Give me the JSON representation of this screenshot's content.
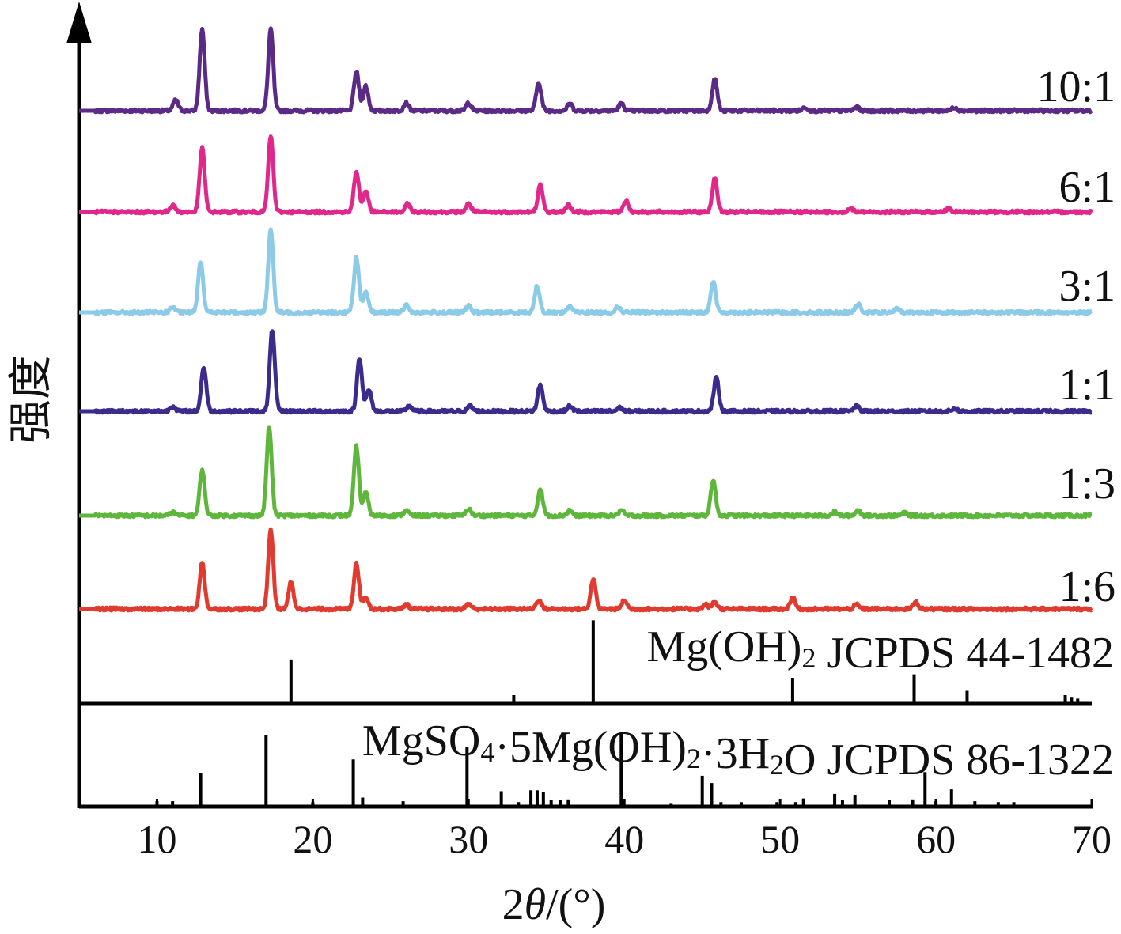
{
  "chart_data": {
    "type": "line",
    "title": "",
    "xlabel": "2θ/(°)",
    "ylabel": "强度",
    "xlim": [
      5,
      70
    ],
    "xticks": [
      10,
      20,
      30,
      40,
      50,
      60,
      70
    ],
    "xtick_labels": [
      "10",
      "20",
      "30",
      "40",
      "50",
      "60",
      "70"
    ],
    "y_ticks_shown": false,
    "grid": false,
    "legend": "series labels at right end of each trace",
    "series": [
      {
        "name": "10:1",
        "color": "#5b2a86",
        "peaks": [
          [
            11.2,
            0.12
          ],
          [
            12.9,
            0.92
          ],
          [
            17.3,
            0.92
          ],
          [
            22.8,
            0.44
          ],
          [
            23.4,
            0.28
          ],
          [
            26.0,
            0.09
          ],
          [
            30.0,
            0.09
          ],
          [
            34.5,
            0.32
          ],
          [
            36.5,
            0.08
          ],
          [
            39.8,
            0.08
          ],
          [
            45.8,
            0.36
          ],
          [
            51.6,
            0.04
          ],
          [
            54.9,
            0.04
          ],
          [
            61.2,
            0.04
          ]
        ]
      },
      {
        "name": "6:1",
        "color": "#e0288a",
        "peaks": [
          [
            11.0,
            0.08
          ],
          [
            12.9,
            0.72
          ],
          [
            17.3,
            0.86
          ],
          [
            22.8,
            0.46
          ],
          [
            23.4,
            0.24
          ],
          [
            26.1,
            0.09
          ],
          [
            30.0,
            0.09
          ],
          [
            34.6,
            0.3
          ],
          [
            36.4,
            0.08
          ],
          [
            40.1,
            0.13
          ],
          [
            45.8,
            0.38
          ],
          [
            54.5,
            0.04
          ],
          [
            60.8,
            0.04
          ]
        ]
      },
      {
        "name": "3:1",
        "color": "#8ccbe8",
        "peaks": [
          [
            11.0,
            0.06
          ],
          [
            12.8,
            0.58
          ],
          [
            17.3,
            0.94
          ],
          [
            22.8,
            0.62
          ],
          [
            23.4,
            0.22
          ],
          [
            26.0,
            0.08
          ],
          [
            30.0,
            0.07
          ],
          [
            34.4,
            0.3
          ],
          [
            36.5,
            0.07
          ],
          [
            39.6,
            0.06
          ],
          [
            45.7,
            0.35
          ],
          [
            55.0,
            0.09
          ],
          [
            57.5,
            0.04
          ]
        ]
      },
      {
        "name": "1:1",
        "color": "#3c2a8c",
        "peaks": [
          [
            11.0,
            0.06
          ],
          [
            13.0,
            0.5
          ],
          [
            17.4,
            0.92
          ],
          [
            23.0,
            0.6
          ],
          [
            23.6,
            0.24
          ],
          [
            26.2,
            0.06
          ],
          [
            30.1,
            0.06
          ],
          [
            34.6,
            0.3
          ],
          [
            36.5,
            0.06
          ],
          [
            39.7,
            0.04
          ],
          [
            45.9,
            0.38
          ],
          [
            54.9,
            0.06
          ],
          [
            61.2,
            0.03
          ]
        ]
      },
      {
        "name": "1:3",
        "color": "#5eb73c",
        "peaks": [
          [
            11.0,
            0.04
          ],
          [
            12.9,
            0.52
          ],
          [
            17.2,
            1.0
          ],
          [
            22.8,
            0.78
          ],
          [
            23.4,
            0.26
          ],
          [
            26.0,
            0.06
          ],
          [
            30.0,
            0.08
          ],
          [
            34.6,
            0.3
          ],
          [
            36.5,
            0.06
          ],
          [
            39.8,
            0.06
          ],
          [
            45.7,
            0.4
          ],
          [
            53.5,
            0.04
          ],
          [
            55.0,
            0.06
          ],
          [
            58.0,
            0.03
          ]
        ]
      },
      {
        "name": "1:6",
        "color": "#e13a2e",
        "peaks": [
          [
            12.9,
            0.52
          ],
          [
            17.3,
            0.9
          ],
          [
            18.6,
            0.3
          ],
          [
            22.8,
            0.52
          ],
          [
            23.4,
            0.14
          ],
          [
            26.0,
            0.05
          ],
          [
            30.0,
            0.06
          ],
          [
            34.5,
            0.1
          ],
          [
            38.0,
            0.34
          ],
          [
            40.0,
            0.1
          ],
          [
            45.2,
            0.05
          ],
          [
            45.8,
            0.08
          ],
          [
            50.8,
            0.13
          ],
          [
            54.9,
            0.05
          ],
          [
            58.7,
            0.08
          ]
        ]
      }
    ],
    "references": [
      {
        "name": "Mg(OH)₂ JCPDS 44-1482",
        "name_parts": [
          {
            "t": "Mg(OH)"
          },
          {
            "t": "2",
            "sub": true
          },
          {
            "t": " JCPDS 44-1482"
          }
        ],
        "sticks": [
          [
            18.6,
            0.51
          ],
          [
            32.9,
            0.1
          ],
          [
            38.0,
            0.96
          ],
          [
            50.8,
            0.3
          ],
          [
            58.6,
            0.34
          ],
          [
            62.0,
            0.15
          ],
          [
            68.3,
            0.1
          ],
          [
            68.7,
            0.08
          ],
          [
            69.1,
            0.06
          ]
        ]
      },
      {
        "name": "MgSO₄·5Mg(OH)₂·3H₂O JCPDS 86-1322",
        "name_parts": [
          {
            "t": "MgSO"
          },
          {
            "t": "4",
            "sub": true
          },
          {
            "t": "·5Mg(OH)"
          },
          {
            "t": "2",
            "sub": true
          },
          {
            "t": "·3H"
          },
          {
            "t": "2",
            "sub": true
          },
          {
            "t": "O JCPDS 86-1322"
          }
        ],
        "sticks": [
          [
            10.0,
            0.06
          ],
          [
            11.0,
            0.06
          ],
          [
            12.8,
            0.37
          ],
          [
            17.0,
            0.79
          ],
          [
            20.0,
            0.05
          ],
          [
            22.6,
            0.52
          ],
          [
            23.2,
            0.1
          ],
          [
            25.8,
            0.06
          ],
          [
            29.9,
            0.66
          ],
          [
            32.1,
            0.17
          ],
          [
            33.2,
            0.05
          ],
          [
            34.0,
            0.18
          ],
          [
            34.4,
            0.18
          ],
          [
            34.8,
            0.16
          ],
          [
            35.3,
            0.07
          ],
          [
            35.9,
            0.07
          ],
          [
            36.4,
            0.08
          ],
          [
            39.8,
            0.82
          ],
          [
            43.0,
            0.04
          ],
          [
            45.0,
            0.34
          ],
          [
            45.6,
            0.26
          ],
          [
            46.2,
            0.05
          ],
          [
            47.5,
            0.05
          ],
          [
            49.8,
            0.05
          ],
          [
            51.0,
            0.05
          ],
          [
            51.5,
            0.09
          ],
          [
            53.5,
            0.14
          ],
          [
            54.0,
            0.07
          ],
          [
            54.8,
            0.13
          ],
          [
            57.0,
            0.07
          ],
          [
            58.5,
            0.08
          ],
          [
            59.3,
            0.38
          ],
          [
            60.0,
            0.06
          ],
          [
            61.0,
            0.19
          ],
          [
            62.5,
            0.06
          ],
          [
            64.0,
            0.05
          ],
          [
            65.0,
            0.05
          ]
        ]
      }
    ]
  }
}
